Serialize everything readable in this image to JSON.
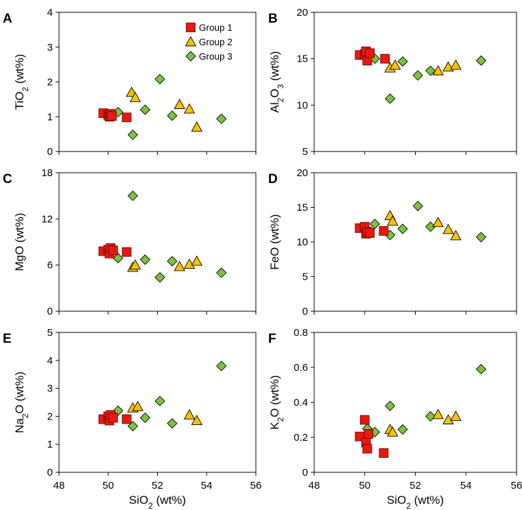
{
  "chart_data": [
    {
      "type": "scatter",
      "letter": "A",
      "ylabel": {
        "main": "TiO",
        "sub": "2",
        "rest": " (wt%)"
      },
      "xlabel": "",
      "xlim": [
        48,
        56
      ],
      "ylim": [
        0,
        4
      ],
      "yticks": [
        0,
        1,
        2,
        3,
        4
      ],
      "xticks": [],
      "series": [
        {
          "name": "Group 1",
          "color": "#e8190f",
          "marker": "square",
          "points": [
            [
              49.8,
              1.1
            ],
            [
              50.0,
              1.05
            ],
            [
              50.05,
              1.0
            ],
            [
              50.1,
              1.08
            ],
            [
              50.15,
              1.02
            ],
            [
              50.75,
              0.98
            ]
          ]
        },
        {
          "name": "Group 2",
          "color": "#f7c200",
          "marker": "triangle",
          "points": [
            [
              50.95,
              1.7
            ],
            [
              51.1,
              1.55
            ],
            [
              52.9,
              1.35
            ],
            [
              53.3,
              1.22
            ],
            [
              53.6,
              0.7
            ]
          ]
        },
        {
          "name": "Group 3",
          "color": "#7cc23f",
          "marker": "diamond",
          "points": [
            [
              50.4,
              1.13
            ],
            [
              51.0,
              0.48
            ],
            [
              51.5,
              1.2
            ],
            [
              52.1,
              2.08
            ],
            [
              52.6,
              1.03
            ],
            [
              54.6,
              0.94
            ]
          ]
        }
      ]
    },
    {
      "type": "scatter",
      "letter": "B",
      "ylabel": {
        "main": "Al",
        "sub": "2",
        "main2": "O",
        "sub2": "3",
        "rest": "  (wt%)"
      },
      "xlabel": "",
      "xlim": [
        48,
        56
      ],
      "ylim": [
        5,
        20
      ],
      "yticks": [
        5,
        10,
        15,
        20
      ],
      "xticks": [],
      "series": [
        {
          "name": "Group 1",
          "color": "#e8190f",
          "marker": "square",
          "points": [
            [
              49.8,
              15.4
            ],
            [
              50.0,
              15.5
            ],
            [
              50.05,
              15.8
            ],
            [
              50.1,
              14.8
            ],
            [
              50.2,
              15.6
            ],
            [
              50.8,
              15.0
            ]
          ]
        },
        {
          "name": "Group 2",
          "color": "#f7c200",
          "marker": "triangle",
          "points": [
            [
              51.0,
              14.0
            ],
            [
              51.2,
              14.3
            ],
            [
              52.9,
              13.7
            ],
            [
              53.3,
              14.1
            ],
            [
              53.6,
              14.3
            ]
          ]
        },
        {
          "name": "Group 3",
          "color": "#7cc23f",
          "marker": "diamond",
          "points": [
            [
              50.4,
              15.0
            ],
            [
              51.0,
              10.7
            ],
            [
              51.5,
              14.7
            ],
            [
              52.1,
              13.2
            ],
            [
              52.6,
              13.7
            ],
            [
              54.6,
              14.8
            ]
          ]
        }
      ]
    },
    {
      "type": "scatter",
      "letter": "C",
      "ylabel": {
        "main": "MgO (wt%)"
      },
      "xlabel": "",
      "xlim": [
        48,
        56
      ],
      "ylim": [
        0,
        18
      ],
      "yticks": [
        0,
        6,
        12,
        18
      ],
      "xticks": [],
      "series": [
        {
          "name": "Group 1",
          "color": "#e8190f",
          "marker": "square",
          "points": [
            [
              49.8,
              7.8
            ],
            [
              50.0,
              8.0
            ],
            [
              50.05,
              7.5
            ],
            [
              50.1,
              8.2
            ],
            [
              50.2,
              7.9
            ],
            [
              50.75,
              7.7
            ]
          ]
        },
        {
          "name": "Group 2",
          "color": "#f7c200",
          "marker": "triangle",
          "points": [
            [
              51.0,
              5.7
            ],
            [
              51.1,
              6.0
            ],
            [
              52.9,
              5.8
            ],
            [
              53.3,
              6.1
            ],
            [
              53.6,
              6.5
            ]
          ]
        },
        {
          "name": "Group 3",
          "color": "#7cc23f",
          "marker": "diamond",
          "points": [
            [
              50.4,
              6.9
            ],
            [
              51.0,
              15.0
            ],
            [
              51.5,
              6.7
            ],
            [
              52.1,
              4.4
            ],
            [
              52.6,
              6.5
            ],
            [
              54.6,
              5.0
            ]
          ]
        }
      ]
    },
    {
      "type": "scatter",
      "letter": "D",
      "ylabel": {
        "main": "FeO  (wt%)"
      },
      "xlabel": "",
      "xlim": [
        48,
        56
      ],
      "ylim": [
        0,
        20
      ],
      "yticks": [
        0,
        5,
        10,
        15,
        20
      ],
      "xticks": [],
      "series": [
        {
          "name": "Group 1",
          "color": "#e8190f",
          "marker": "square",
          "points": [
            [
              49.8,
              12.0
            ],
            [
              50.0,
              12.2
            ],
            [
              50.05,
              11.2
            ],
            [
              50.1,
              11.5
            ],
            [
              50.2,
              11.3
            ],
            [
              50.75,
              11.6
            ]
          ]
        },
        {
          "name": "Group 2",
          "color": "#f7c200",
          "marker": "triangle",
          "points": [
            [
              51.0,
              13.8
            ],
            [
              51.1,
              13.0
            ],
            [
              52.9,
              12.8
            ],
            [
              53.3,
              11.8
            ],
            [
              53.6,
              10.9
            ]
          ]
        },
        {
          "name": "Group 3",
          "color": "#7cc23f",
          "marker": "diamond",
          "points": [
            [
              50.4,
              12.6
            ],
            [
              51.0,
              11.0
            ],
            [
              51.5,
              11.9
            ],
            [
              52.1,
              15.2
            ],
            [
              52.6,
              12.2
            ],
            [
              54.6,
              10.7
            ]
          ]
        }
      ]
    },
    {
      "type": "scatter",
      "letter": "E",
      "ylabel": {
        "main": "Na",
        "sub": "2",
        "main2": "O (wt%)"
      },
      "xlabel": {
        "main": "SiO",
        "sub": "2",
        "rest": " (wt%)"
      },
      "xlim": [
        48,
        56
      ],
      "ylim": [
        0,
        5
      ],
      "yticks": [
        0,
        1,
        2,
        3,
        4,
        5
      ],
      "xticks": [
        48,
        50,
        52,
        54,
        56
      ],
      "series": [
        {
          "name": "Group 1",
          "color": "#e8190f",
          "marker": "square",
          "points": [
            [
              49.8,
              1.9
            ],
            [
              50.0,
              2.0
            ],
            [
              50.05,
              1.85
            ],
            [
              50.1,
              2.05
            ],
            [
              50.2,
              1.95
            ],
            [
              50.75,
              1.9
            ]
          ]
        },
        {
          "name": "Group 2",
          "color": "#f7c200",
          "marker": "triangle",
          "points": [
            [
              51.0,
              2.3
            ],
            [
              51.2,
              2.35
            ],
            [
              53.3,
              2.05
            ],
            [
              53.6,
              1.85
            ]
          ]
        },
        {
          "name": "Group 3",
          "color": "#7cc23f",
          "marker": "diamond",
          "points": [
            [
              50.4,
              2.2
            ],
            [
              51.0,
              1.65
            ],
            [
              51.5,
              1.95
            ],
            [
              52.1,
              2.55
            ],
            [
              52.6,
              1.75
            ],
            [
              54.6,
              3.8
            ]
          ]
        }
      ]
    },
    {
      "type": "scatter",
      "letter": "F",
      "ylabel": {
        "main": "K",
        "sub": "2",
        "main2": "O (wt%)"
      },
      "xlabel": {
        "main": "SiO",
        "sub": "2",
        "rest": " (wt%)"
      },
      "xlim": [
        48,
        56
      ],
      "ylim": [
        0,
        0.8
      ],
      "yticks": [
        0,
        0.2,
        0.4,
        0.6,
        0.8
      ],
      "xticks": [
        48,
        50,
        52,
        54,
        56
      ],
      "series": [
        {
          "name": "Group 1",
          "color": "#e8190f",
          "marker": "square",
          "points": [
            [
              49.8,
              0.205
            ],
            [
              50.0,
              0.3
            ],
            [
              50.05,
              0.17
            ],
            [
              50.1,
              0.135
            ],
            [
              50.15,
              0.22
            ],
            [
              50.75,
              0.11
            ]
          ]
        },
        {
          "name": "Group 2",
          "color": "#f7c200",
          "marker": "triangle",
          "points": [
            [
              51.0,
              0.245
            ],
            [
              51.1,
              0.23
            ],
            [
              52.9,
              0.33
            ],
            [
              53.3,
              0.3
            ],
            [
              53.6,
              0.32
            ]
          ]
        },
        {
          "name": "Group 3",
          "color": "#7cc23f",
          "marker": "diamond",
          "points": [
            [
              50.1,
              0.25
            ],
            [
              50.4,
              0.23
            ],
            [
              51.0,
              0.38
            ],
            [
              51.5,
              0.245
            ],
            [
              52.6,
              0.32
            ],
            [
              54.6,
              0.59
            ]
          ]
        }
      ]
    }
  ],
  "legend": {
    "panel": "A",
    "entries": [
      {
        "label": "Group 1",
        "color": "#e8190f",
        "marker": "square"
      },
      {
        "label": "Group 2",
        "color": "#f7c200",
        "marker": "triangle"
      },
      {
        "label": "Group 3",
        "color": "#7cc23f",
        "marker": "diamond"
      }
    ]
  },
  "colors": {
    "frame": "#000000",
    "background": "#ffffff"
  }
}
